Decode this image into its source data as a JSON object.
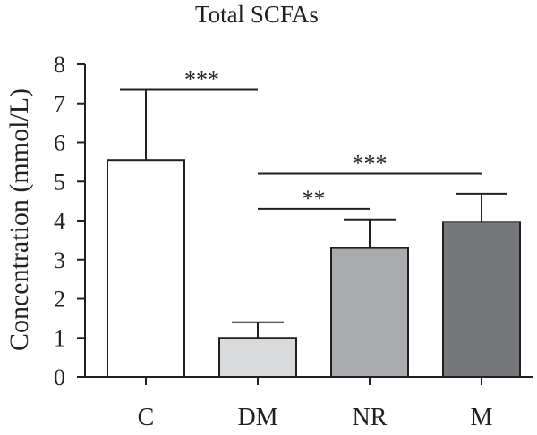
{
  "chart_data": {
    "type": "bar",
    "title": "Total SCFAs",
    "xlabel": "",
    "ylabel": "Concentration (mmol/L)",
    "ylim": [
      0,
      8
    ],
    "yticks": [
      0,
      1,
      2,
      3,
      4,
      5,
      6,
      7,
      8
    ],
    "categories": [
      "C",
      "DM",
      "NR",
      "M"
    ],
    "values": [
      5.55,
      1.0,
      3.3,
      3.97
    ],
    "errors": [
      1.8,
      0.4,
      0.73,
      0.72
    ],
    "bar_colors": [
      "#ffffff",
      "#d9dadc",
      "#aaabae",
      "#76787b"
    ],
    "edge_color": "#231f20",
    "grid": false,
    "significance": [
      {
        "from": "C",
        "to": "DM",
        "label": "***",
        "y": 7.35
      },
      {
        "from": "DM",
        "to": "NR",
        "label": "**",
        "y": 4.3
      },
      {
        "from": "DM",
        "to": "M",
        "label": "***",
        "y": 5.2
      }
    ]
  }
}
